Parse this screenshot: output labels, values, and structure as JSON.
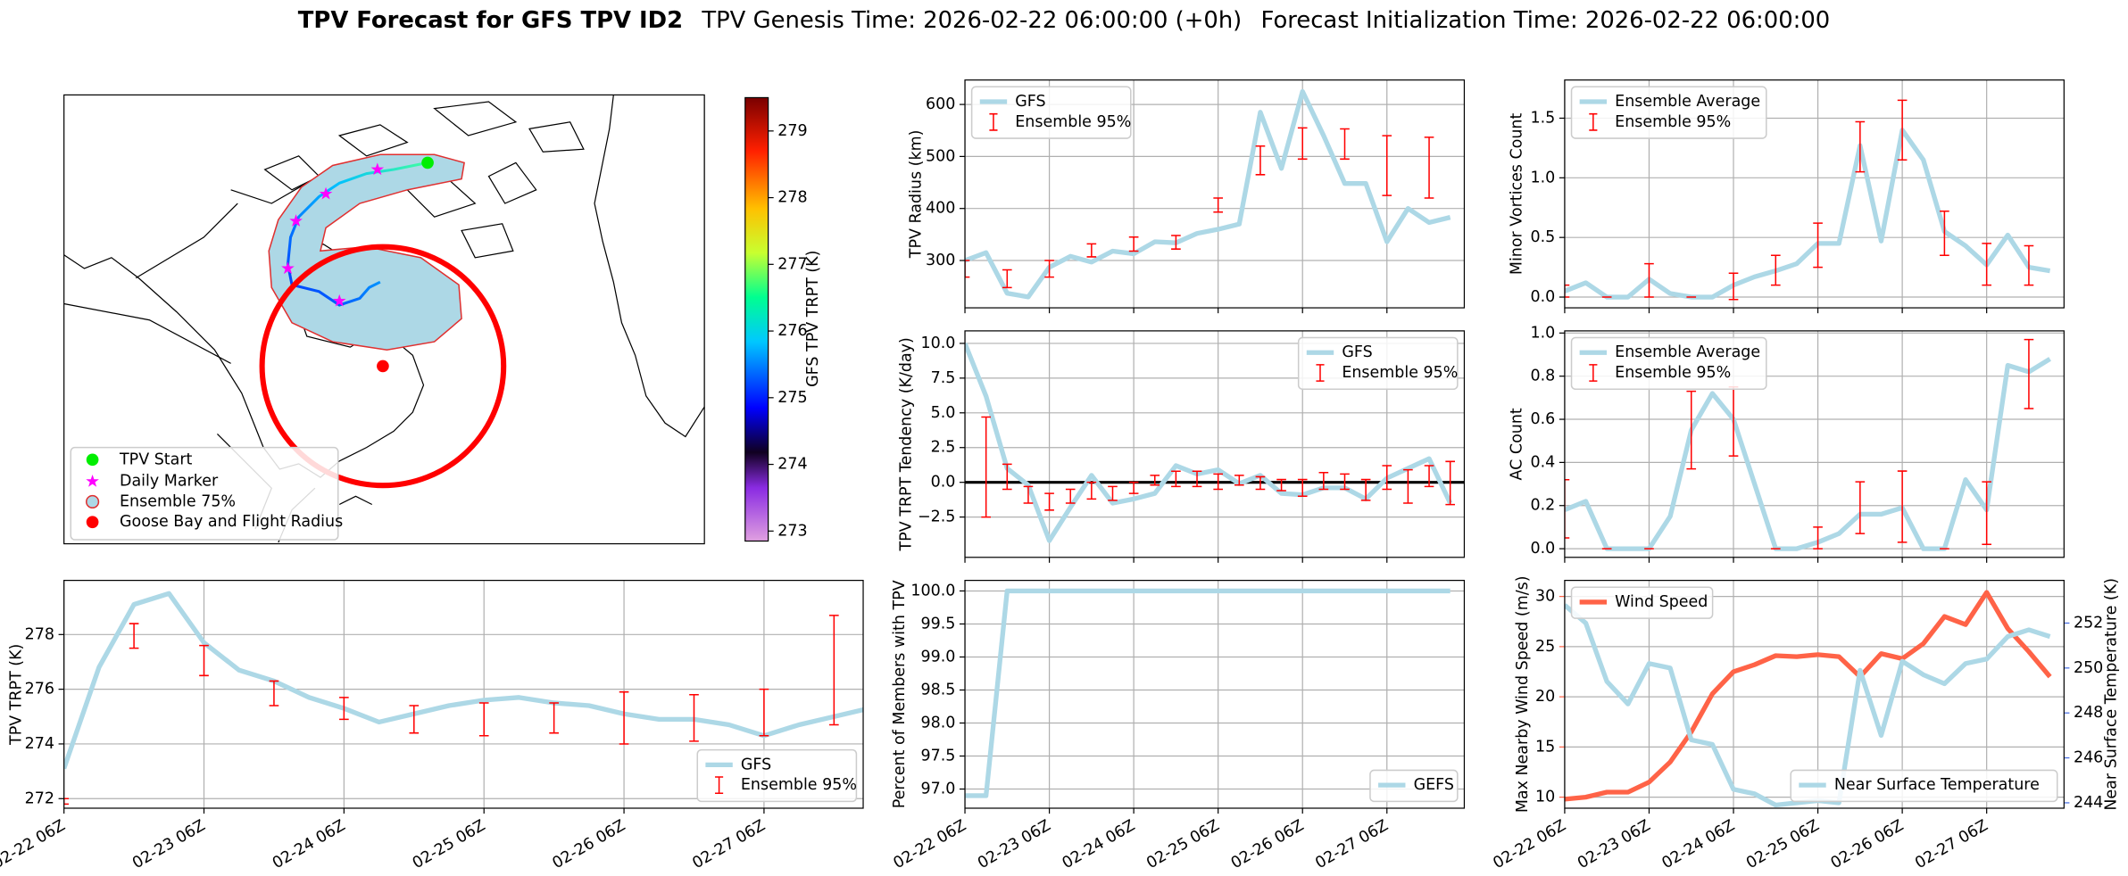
{
  "header": {
    "title": "TPV Forecast for GFS TPV ID2",
    "genesis": "TPV Genesis Time: 2026-02-22 06:00:00 (+0h)",
    "initialization": "Forecast Initialization Time: 2026-02-22 06:00:00"
  },
  "chart_data": [
    {
      "type": "map",
      "legend": [
        "TPV Start",
        "Daily Marker",
        "Ensemble 75%",
        "Goose Bay and Flight Radius"
      ],
      "colorbar": {
        "label": "GFS TPV TRPT (K)",
        "lim": [
          272.85,
          279.5
        ],
        "ticks": [
          273,
          274,
          275,
          276,
          277,
          278,
          279
        ]
      }
    },
    {
      "type": "line",
      "ylabel": "TPV TRPT (K)",
      "grid": true,
      "legend": "lower right",
      "xlim": [
        0,
        137
      ],
      "xticks": [
        {
          "value": 0,
          "label": "02-22 06Z"
        },
        {
          "value": 24,
          "label": "02-23 06Z"
        },
        {
          "value": 48,
          "label": "02-24 06Z"
        },
        {
          "value": 72,
          "label": "02-25 06Z"
        },
        {
          "value": 96,
          "label": "02-26 06Z"
        },
        {
          "value": 120,
          "label": "02-27 06Z"
        }
      ],
      "ylim": [
        271.65,
        279.98
      ],
      "yticks": [
        272,
        274,
        276,
        278
      ],
      "series": [
        {
          "name": "GFS",
          "color": "#add8e6",
          "x": [
            0,
            6,
            12,
            18,
            24,
            30,
            36,
            42,
            48,
            54,
            60,
            66,
            72,
            78,
            84,
            90,
            96,
            102,
            108,
            114,
            120,
            126,
            132,
            138
          ],
          "values": [
            273.1,
            276.8,
            279.1,
            279.5,
            277.7,
            276.7,
            276.3,
            275.7,
            275.3,
            274.8,
            275.1,
            275.4,
            275.6,
            275.7,
            275.5,
            275.4,
            275.1,
            274.9,
            274.9,
            274.7,
            274.3,
            274.7,
            275.0,
            275.3
          ]
        },
        {
          "name": "Ensemble 95%",
          "color": "#ff0000",
          "x": [
            0,
            12,
            24,
            36,
            48,
            60,
            72,
            84,
            96,
            108,
            120,
            132
          ],
          "low": [
            271.8,
            277.5,
            276.5,
            275.4,
            274.9,
            274.4,
            274.3,
            274.4,
            274.0,
            274.1,
            274.3,
            274.7
          ],
          "high": [
            272.0,
            278.4,
            277.6,
            276.3,
            275.7,
            275.4,
            275.5,
            275.5,
            275.9,
            275.8,
            276.0,
            278.7
          ]
        }
      ]
    },
    {
      "type": "line",
      "ylabel": "TPV Radius (km)",
      "grid": true,
      "legend": "upper left",
      "sharex": 4,
      "ylim": [
        209,
        647
      ],
      "yticks": [
        300,
        400,
        500,
        600
      ],
      "series": [
        {
          "name": "GFS",
          "color": "#add8e6",
          "x": [
            0,
            6,
            12,
            18,
            24,
            30,
            36,
            42,
            48,
            54,
            60,
            66,
            72,
            78,
            84,
            90,
            96,
            102,
            108,
            114,
            120,
            126,
            132,
            138
          ],
          "values": [
            300,
            315,
            237,
            230,
            287,
            308,
            297,
            318,
            313,
            336,
            334,
            352,
            360,
            370,
            585,
            477,
            625,
            540,
            448,
            448,
            336,
            400,
            373,
            383
          ]
        },
        {
          "name": "Ensemble 95%",
          "color": "#ff0000",
          "x": [
            0,
            12,
            24,
            36,
            48,
            60,
            72,
            84,
            96,
            108,
            120,
            132
          ],
          "low": [
            268,
            248,
            268,
            307,
            318,
            322,
            393,
            465,
            495,
            495,
            425,
            420
          ],
          "high": [
            300,
            282,
            300,
            332,
            345,
            348,
            420,
            520,
            555,
            553,
            540,
            537
          ]
        }
      ]
    },
    {
      "type": "line",
      "ylabel": "TPV TRPT Tendency (K/day)",
      "grid": true,
      "legend": "upper right",
      "sharex": 4,
      "hline": 0,
      "ylim": [
        -5.4,
        10.9
      ],
      "yticks": [
        {
          "value": -2.5,
          "label": "−2.5"
        },
        {
          "value": 0,
          "label": "0.0"
        },
        {
          "value": 2.5,
          "label": "2.5"
        },
        {
          "value": 5,
          "label": "5.0"
        },
        {
          "value": 7.5,
          "label": "7.5"
        },
        {
          "value": 10,
          "label": "10.0"
        }
      ],
      "series": [
        {
          "name": "GFS",
          "color": "#add8e6",
          "x": [
            0,
            6,
            12,
            18,
            24,
            30,
            36,
            42,
            48,
            54,
            60,
            66,
            72,
            78,
            84,
            90,
            96,
            102,
            108,
            114,
            120,
            126,
            132,
            138
          ],
          "values": [
            10.0,
            6.2,
            1.0,
            -0.2,
            -4.2,
            -1.8,
            0.5,
            -1.5,
            -1.2,
            -0.8,
            1.2,
            0.6,
            0.9,
            -0.1,
            0.5,
            -0.8,
            -0.9,
            -0.4,
            -0.4,
            -1.2,
            0.3,
            1.0,
            1.7,
            -1.5
          ]
        },
        {
          "name": "Ensemble 95%",
          "color": "#ff0000",
          "x": [
            6,
            12,
            18,
            24,
            30,
            36,
            42,
            48,
            54,
            60,
            66,
            72,
            78,
            84,
            90,
            96,
            102,
            108,
            114,
            120,
            126,
            132,
            138
          ],
          "low": [
            -2.5,
            -0.5,
            -1.5,
            -2.0,
            -1.5,
            -1.2,
            -1.3,
            -0.8,
            -0.2,
            -0.3,
            -0.3,
            -0.5,
            -0.2,
            -0.5,
            -0.6,
            -1.0,
            -0.5,
            -0.5,
            -1.3,
            -0.5,
            -1.5,
            -0.3,
            -1.6
          ],
          "high": [
            4.7,
            1.3,
            -0.3,
            -0.8,
            -0.5,
            0.0,
            -0.3,
            0.0,
            0.5,
            0.8,
            0.8,
            0.6,
            0.5,
            0.4,
            0.2,
            0.2,
            0.7,
            0.6,
            0.2,
            1.2,
            0.9,
            1.2,
            1.5
          ]
        }
      ]
    },
    {
      "type": "line",
      "ylabel": "Percent of Members with TPV",
      "grid": true,
      "legend": "lower right",
      "xlim": [
        0,
        142
      ],
      "xticks": [
        {
          "value": 0,
          "label": "02-22 06Z"
        },
        {
          "value": 24,
          "label": "02-23 06Z"
        },
        {
          "value": 48,
          "label": "02-24 06Z"
        },
        {
          "value": 72,
          "label": "02-25 06Z"
        },
        {
          "value": 96,
          "label": "02-26 06Z"
        },
        {
          "value": 120,
          "label": "02-27 06Z"
        }
      ],
      "ylim": [
        96.71,
        100.16
      ],
      "yticks": [
        {
          "value": 97,
          "label": "97.0"
        },
        {
          "value": 97.5,
          "label": "97.5"
        },
        {
          "value": 98,
          "label": "98.0"
        },
        {
          "value": 98.5,
          "label": "98.5"
        },
        {
          "value": 99,
          "label": "99.0"
        },
        {
          "value": 99.5,
          "label": "99.5"
        },
        {
          "value": 100,
          "label": "100.0"
        }
      ],
      "series": [
        {
          "name": "GEFS",
          "color": "#add8e6",
          "x": [
            0,
            6,
            12,
            18,
            24,
            30,
            36,
            42,
            48,
            54,
            60,
            66,
            72,
            78,
            84,
            90,
            96,
            102,
            108,
            114,
            120,
            126,
            132,
            138
          ],
          "values": [
            96.9,
            96.9,
            100,
            100,
            100,
            100,
            100,
            100,
            100,
            100,
            100,
            100,
            100,
            100,
            100,
            100,
            100,
            100,
            100,
            100,
            100,
            100,
            100,
            100
          ]
        }
      ]
    },
    {
      "type": "line",
      "ylabel": "Minor Vortices Count",
      "grid": true,
      "legend": "upper left",
      "sharex": 7,
      "ylim": [
        -0.09,
        1.82
      ],
      "yticks": [
        {
          "value": 0,
          "label": "0.0"
        },
        {
          "value": 0.5,
          "label": "0.5"
        },
        {
          "value": 1,
          "label": "1.0"
        },
        {
          "value": 1.5,
          "label": "1.5"
        }
      ],
      "series": [
        {
          "name": "Ensemble Average",
          "color": "#add8e6",
          "x": [
            0,
            6,
            12,
            18,
            24,
            30,
            36,
            42,
            48,
            54,
            60,
            66,
            72,
            78,
            84,
            90,
            96,
            102,
            108,
            114,
            120,
            126,
            132,
            138
          ],
          "values": [
            0.05,
            0.12,
            0.0,
            0.0,
            0.15,
            0.03,
            0.0,
            0.0,
            0.1,
            0.17,
            0.22,
            0.28,
            0.45,
            0.45,
            1.27,
            0.47,
            1.4,
            1.15,
            0.55,
            0.43,
            0.27,
            0.52,
            0.25,
            0.22
          ]
        },
        {
          "name": "Ensemble 95%",
          "color": "#ff0000",
          "x": [
            0,
            12,
            24,
            36,
            48,
            60,
            72,
            84,
            96,
            108,
            120,
            132
          ],
          "low": [
            0.0,
            0.0,
            0.0,
            0.0,
            -0.02,
            0.1,
            0.25,
            1.05,
            1.15,
            0.35,
            0.1,
            0.1
          ],
          "high": [
            0.1,
            0.0,
            0.28,
            0.0,
            0.2,
            0.35,
            0.62,
            1.47,
            1.65,
            0.72,
            0.45,
            0.43
          ]
        }
      ]
    },
    {
      "type": "line",
      "ylabel": "AC Count",
      "grid": true,
      "legend": "upper left",
      "sharex": 7,
      "ylim": [
        -0.04,
        1.01
      ],
      "yticks": [
        {
          "value": 0,
          "label": "0.0"
        },
        0.2,
        0.4,
        0.6,
        0.8,
        {
          "value": 1,
          "label": "1.0"
        }
      ],
      "series": [
        {
          "name": "Ensemble Average",
          "color": "#add8e6",
          "x": [
            0,
            6,
            12,
            18,
            24,
            30,
            36,
            42,
            48,
            54,
            60,
            66,
            72,
            78,
            84,
            90,
            96,
            102,
            108,
            114,
            120,
            126,
            132,
            138
          ],
          "values": [
            0.18,
            0.22,
            0.0,
            0.0,
            0.0,
            0.15,
            0.55,
            0.72,
            0.6,
            0.3,
            0.0,
            0.0,
            0.03,
            0.07,
            0.16,
            0.16,
            0.19,
            0.0,
            0.0,
            0.32,
            0.18,
            0.85,
            0.82,
            0.88
          ]
        },
        {
          "name": "Ensemble 95%",
          "color": "#ff0000",
          "x": [
            0,
            12,
            24,
            36,
            48,
            60,
            72,
            84,
            96,
            108,
            120,
            132
          ],
          "low": [
            0.05,
            0.0,
            0.0,
            0.37,
            0.43,
            0.0,
            0.0,
            0.07,
            0.03,
            0.0,
            0.02,
            0.65
          ],
          "high": [
            0.32,
            0.0,
            0.0,
            0.73,
            0.75,
            0.0,
            0.1,
            0.31,
            0.36,
            0.0,
            0.31,
            0.97
          ]
        }
      ]
    },
    {
      "type": "line",
      "ylabel": "Max Nearby Wind Speed (m/s)",
      "ycolor": "#ff6347",
      "y2label": "Near Surface Temperature (K)",
      "y2color": "#4169e1",
      "grid": true,
      "legend": "upper left",
      "y2legend": "lower right",
      "xlim": [
        0,
        142
      ],
      "xticks": [
        {
          "value": 0,
          "label": "02-22 06Z"
        },
        {
          "value": 24,
          "label": "02-23 06Z"
        },
        {
          "value": 48,
          "label": "02-24 06Z"
        },
        {
          "value": 72,
          "label": "02-25 06Z"
        },
        {
          "value": 96,
          "label": "02-26 06Z"
        },
        {
          "value": 120,
          "label": "02-27 06Z"
        }
      ],
      "ylim": [
        8.9,
        31.6
      ],
      "yticks": [
        10,
        15,
        20,
        25,
        30
      ],
      "y2lim": [
        243.76,
        253.9
      ],
      "y2ticks": [
        244,
        246,
        248,
        250,
        252
      ],
      "series": [
        {
          "name": "Wind Speed",
          "color": "#ff6347",
          "x": [
            0,
            6,
            12,
            18,
            24,
            30,
            36,
            42,
            48,
            54,
            60,
            66,
            72,
            78,
            84,
            90,
            96,
            102,
            108,
            114,
            120,
            126,
            132,
            138
          ],
          "values": [
            9.8,
            10.0,
            10.5,
            10.5,
            11.5,
            13.5,
            16.5,
            20.3,
            22.5,
            23.2,
            24.1,
            24.0,
            24.2,
            24.0,
            22.0,
            24.3,
            23.8,
            25.3,
            28.0,
            27.2,
            30.4,
            26.8,
            24.5,
            22.0
          ]
        },
        {
          "name": "Near Surface Temperature",
          "color": "#add8e6",
          "axis": "y2",
          "x": [
            0,
            6,
            12,
            18,
            24,
            30,
            36,
            42,
            48,
            54,
            60,
            66,
            72,
            78,
            84,
            90,
            96,
            102,
            108,
            114,
            120,
            126,
            132,
            138
          ],
          "values": [
            252.8,
            252.0,
            249.4,
            248.4,
            250.2,
            250.0,
            246.8,
            246.6,
            244.6,
            244.4,
            243.9,
            244.0,
            244.1,
            244.0,
            249.9,
            247.0,
            250.3,
            249.7,
            249.3,
            250.2,
            250.4,
            251.4,
            251.7,
            251.4
          ]
        }
      ]
    }
  ]
}
